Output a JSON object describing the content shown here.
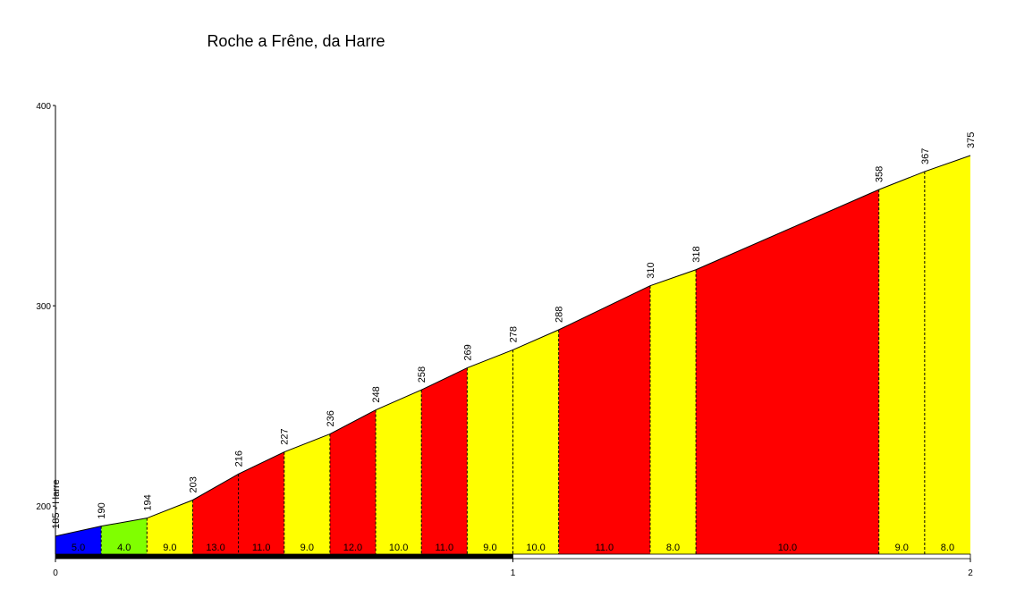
{
  "chart_data": {
    "type": "profile",
    "title": "Roche a Frêne, da Harre",
    "x": [
      0,
      0.1,
      0.2,
      0.3,
      0.4,
      0.5,
      0.6,
      0.7,
      0.8,
      0.9,
      1.0,
      1.1,
      1.3,
      1.4,
      1.8,
      1.9,
      2.0
    ],
    "values": [
      185,
      190,
      194,
      203,
      216,
      227,
      236,
      248,
      258,
      269,
      278,
      288,
      310,
      318,
      358,
      367,
      375
    ],
    "value_labels": [
      "185 - Harre",
      "190",
      "194",
      "203",
      "216",
      "227",
      "236",
      "248",
      "258",
      "269",
      "278",
      "288",
      "310",
      "318",
      "358",
      "367",
      "375"
    ],
    "segments": {
      "values": [
        5,
        4,
        9,
        13,
        11,
        9,
        12,
        10,
        11,
        9,
        10,
        11,
        8,
        10,
        9,
        8
      ],
      "value_labels": [
        "5.0",
        "4.0",
        "9.0",
        "13.0",
        "11.0",
        "9.0",
        "12.0",
        "10.0",
        "11.0",
        "9.0",
        "10.0",
        "11.0",
        "8.0",
        "10.0",
        "9.0",
        "8.0"
      ],
      "colors": [
        "#0000ff",
        "#80ff00",
        "#ffff00",
        "#ff0000",
        "#ff0000",
        "#ffff00",
        "#ff0000",
        "#ffff00",
        "#ff0000",
        "#ffff00",
        "#ffff00",
        "#ff0000",
        "#ffff00",
        "#ff0000",
        "#ffff00",
        "#ffff00"
      ]
    },
    "xlim": [
      0,
      2
    ],
    "xticks": [
      0,
      1,
      2
    ],
    "ylim": [
      176,
      400
    ],
    "yticks": [
      200,
      300,
      400
    ]
  }
}
